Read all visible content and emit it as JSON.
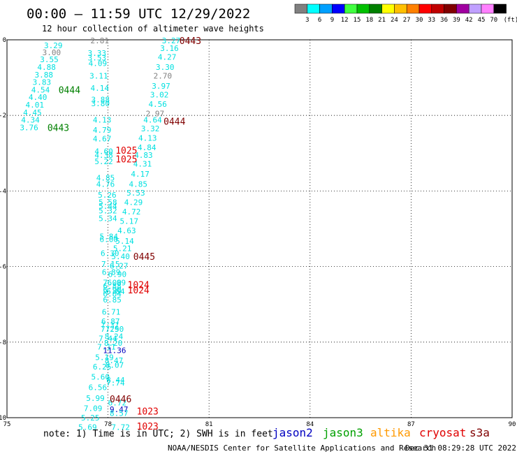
{
  "header": {
    "title": "00:00 – 11:59 UTC 12/29/2022",
    "subtitle": "12 hour collection of altimeter wave heights"
  },
  "legend": {
    "unit": "(ft)",
    "bins": [
      {
        "label": "3",
        "color": "#808080"
      },
      {
        "label": "6",
        "color": "#00ffff"
      },
      {
        "label": "9",
        "color": "#00a0ff"
      },
      {
        "label": "12",
        "color": "#0000ff"
      },
      {
        "label": "15",
        "color": "#40ff40"
      },
      {
        "label": "18",
        "color": "#00c000"
      },
      {
        "label": "21",
        "color": "#008000"
      },
      {
        "label": "24",
        "color": "#ffff00"
      },
      {
        "label": "27",
        "color": "#ffc000"
      },
      {
        "label": "30",
        "color": "#ff8000"
      },
      {
        "label": "33",
        "color": "#ff0000"
      },
      {
        "label": "36",
        "color": "#c00000"
      },
      {
        "label": "39",
        "color": "#800000"
      },
      {
        "label": "42",
        "color": "#a000a0"
      },
      {
        "label": "45",
        "color": "#c0a0ff"
      },
      {
        "label": "70",
        "color": "#ff80ff"
      },
      {
        "label": "",
        "color": "#000000"
      }
    ]
  },
  "footer": {
    "note": "note: 1) Time is in UTC; 2) SWH is in feet",
    "credit": "NOAA/NESDIS Center for Satellite Applications and Research",
    "timestamp": "Dec 31 08:29:28 UTC 2022",
    "satellites": [
      {
        "name": "jason2",
        "color": "#0000c0"
      },
      {
        "name": "jason3",
        "color": "#00a000"
      },
      {
        "name": "altika",
        "color": "#ff9900"
      },
      {
        "name": "cryosat",
        "color": "#e00000"
      },
      {
        "name": "s3a",
        "color": "#800000"
      }
    ]
  },
  "chart_data": {
    "type": "scatter",
    "xlim": [
      75,
      90
    ],
    "ylim": [
      -10,
      0
    ],
    "x_ticks": [
      "75",
      "78",
      "81",
      "84",
      "87",
      "90"
    ],
    "y_ticks": [
      "0",
      "-2",
      "-4",
      "-6",
      "-8",
      "-10"
    ],
    "x_tick_values": [
      75,
      78,
      81,
      84,
      87,
      90
    ],
    "y_tick_values": [
      0,
      -2,
      -4,
      -6,
      -8,
      -10
    ],
    "grid": true,
    "points": [
      {
        "x": 76.1,
        "y": -0.15,
        "label": "3.29",
        "color": "#00e0e0"
      },
      {
        "x": 76.05,
        "y": -0.33,
        "label": "3.00",
        "color": "#808080"
      },
      {
        "x": 75.98,
        "y": -0.52,
        "label": "3.55",
        "color": "#00e0e0"
      },
      {
        "x": 75.9,
        "y": -0.72,
        "label": "4.88",
        "color": "#00e0e0"
      },
      {
        "x": 75.82,
        "y": -0.92,
        "label": "3.88",
        "color": "#00e0e0"
      },
      {
        "x": 75.76,
        "y": -1.12,
        "label": "3.83",
        "color": "#00e0e0"
      },
      {
        "x": 75.72,
        "y": -1.32,
        "label": "4.54",
        "color": "#00e0e0"
      },
      {
        "x": 75.64,
        "y": -1.52,
        "label": "4.40",
        "color": "#00e0e0"
      },
      {
        "x": 75.55,
        "y": -1.72,
        "label": "4.01",
        "color": "#00e0e0"
      },
      {
        "x": 75.48,
        "y": -1.92,
        "label": "4.45",
        "color": "#00e0e0"
      },
      {
        "x": 75.42,
        "y": -2.12,
        "label": "4.34",
        "color": "#00e0e0"
      },
      {
        "x": 75.38,
        "y": -2.32,
        "label": "3.76",
        "color": "#00e0e0"
      },
      {
        "x": 76.53,
        "y": -1.32,
        "label": "0444",
        "color": "#008000",
        "time": true
      },
      {
        "x": 76.2,
        "y": -2.32,
        "label": "0443",
        "color": "#008000",
        "time": true
      },
      {
        "x": 77.48,
        "y": -0.02,
        "label": "2.81",
        "color": "#808080"
      },
      {
        "x": 77.4,
        "y": -0.35,
        "label": "3.33",
        "color": "#00e0e0"
      },
      {
        "x": 77.4,
        "y": -0.47,
        "label": "3.53",
        "color": "#00e0e0"
      },
      {
        "x": 77.42,
        "y": -0.62,
        "label": "4.09",
        "color": "#00e0e0"
      },
      {
        "x": 77.45,
        "y": -0.95,
        "label": "3.11",
        "color": "#00e0e0"
      },
      {
        "x": 77.48,
        "y": -1.28,
        "label": "4.14",
        "color": "#00e0e0"
      },
      {
        "x": 77.5,
        "y": -1.58,
        "label": "3.88",
        "color": "#00e0e0"
      },
      {
        "x": 77.5,
        "y": -1.68,
        "label": "3.80",
        "color": "#00e0e0"
      },
      {
        "x": 77.55,
        "y": -2.12,
        "label": "4.13",
        "color": "#00e0e0"
      },
      {
        "x": 77.55,
        "y": -2.38,
        "label": "4.79",
        "color": "#00e0e0"
      },
      {
        "x": 77.55,
        "y": -2.62,
        "label": "4.67",
        "color": "#00e0e0"
      },
      {
        "x": 77.6,
        "y": -2.95,
        "label": "4.60",
        "color": "#00e0e0"
      },
      {
        "x": 77.6,
        "y": -3.05,
        "label": "4.38",
        "color": "#00e0e0"
      },
      {
        "x": 77.6,
        "y": -3.22,
        "label": "5.22",
        "color": "#00e0e0"
      },
      {
        "x": 77.65,
        "y": -3.65,
        "label": "4.85",
        "color": "#00e0e0"
      },
      {
        "x": 77.65,
        "y": -3.82,
        "label": "4.76",
        "color": "#00e0e0"
      },
      {
        "x": 77.7,
        "y": -4.1,
        "label": "5.26",
        "color": "#00e0e0"
      },
      {
        "x": 77.72,
        "y": -4.3,
        "label": "5.58",
        "color": "#00e0e0"
      },
      {
        "x": 77.72,
        "y": -4.4,
        "label": "5.44",
        "color": "#00e0e0"
      },
      {
        "x": 77.72,
        "y": -4.52,
        "label": "5.32",
        "color": "#00e0e0"
      },
      {
        "x": 77.72,
        "y": -4.72,
        "label": "5.34",
        "color": "#00e0e0"
      },
      {
        "x": 77.75,
        "y": -5.2,
        "label": "5.84",
        "color": "#00e0e0"
      },
      {
        "x": 77.75,
        "y": -5.28,
        "label": "6.00",
        "color": "#00e0e0"
      },
      {
        "x": 77.78,
        "y": -5.65,
        "label": "6.30",
        "color": "#00e0e0"
      },
      {
        "x": 77.8,
        "y": -5.93,
        "label": "7.15",
        "color": "#00e0e0"
      },
      {
        "x": 77.82,
        "y": -6.15,
        "label": "6.89",
        "color": "#00e0e0"
      },
      {
        "x": 77.85,
        "y": -6.42,
        "label": "7.00",
        "color": "#00e0e0"
      },
      {
        "x": 77.85,
        "y": -6.52,
        "label": "6.88",
        "color": "#00e0e0"
      },
      {
        "x": 77.85,
        "y": -6.62,
        "label": "6.90",
        "color": "#00e0e0"
      },
      {
        "x": 77.85,
        "y": -6.72,
        "label": "6.84",
        "color": "#00e0e0"
      },
      {
        "x": 77.85,
        "y": -6.88,
        "label": "6.85",
        "color": "#00e0e0"
      },
      {
        "x": 77.82,
        "y": -7.2,
        "label": "6.71",
        "color": "#00e0e0"
      },
      {
        "x": 77.8,
        "y": -7.45,
        "label": "6.87",
        "color": "#00e0e0"
      },
      {
        "x": 77.78,
        "y": -7.55,
        "label": "7.37",
        "color": "#00e0e0"
      },
      {
        "x": 77.78,
        "y": -7.65,
        "label": "7.29",
        "color": "#00e0e0"
      },
      {
        "x": 77.72,
        "y": -7.9,
        "label": "7.44",
        "color": "#00e0e0"
      },
      {
        "x": 77.68,
        "y": -8.12,
        "label": "7.11",
        "color": "#00e0e0"
      },
      {
        "x": 77.62,
        "y": -8.4,
        "label": "5.19",
        "color": "#00e0e0"
      },
      {
        "x": 77.55,
        "y": -8.65,
        "label": "6.25",
        "color": "#00e0e0"
      },
      {
        "x": 77.5,
        "y": -8.92,
        "label": "5.60",
        "color": "#00e0e0"
      },
      {
        "x": 77.42,
        "y": -9.2,
        "label": "6.56",
        "color": "#00e0e0"
      },
      {
        "x": 77.35,
        "y": -9.48,
        "label": "5.99",
        "color": "#00e0e0"
      },
      {
        "x": 77.28,
        "y": -9.75,
        "label": "7.09",
        "color": "#00e0e0"
      },
      {
        "x": 77.2,
        "y": -10.0,
        "label": "5.25",
        "color": "#00e0e0"
      },
      {
        "x": 77.12,
        "y": -10.25,
        "label": "5.69",
        "color": "#00e0e0"
      },
      {
        "x": 79.6,
        "y": -0.02,
        "label": "3.27",
        "color": "#00e0e0"
      },
      {
        "x": 79.55,
        "y": -0.22,
        "label": "3.16",
        "color": "#00e0e0"
      },
      {
        "x": 79.48,
        "y": -0.45,
        "label": "4.27",
        "color": "#00e0e0"
      },
      {
        "x": 79.42,
        "y": -0.72,
        "label": "3.30",
        "color": "#00e0e0"
      },
      {
        "x": 79.35,
        "y": -0.95,
        "label": "2.70",
        "color": "#808080"
      },
      {
        "x": 79.3,
        "y": -1.22,
        "label": "3.97",
        "color": "#00e0e0"
      },
      {
        "x": 79.25,
        "y": -1.45,
        "label": "3.02",
        "color": "#00e0e0"
      },
      {
        "x": 79.2,
        "y": -1.7,
        "label": "4.56",
        "color": "#00e0e0"
      },
      {
        "x": 79.12,
        "y": -1.95,
        "label": "2.97",
        "color": "#808080"
      },
      {
        "x": 79.05,
        "y": -2.12,
        "label": "4.64",
        "color": "#00e0e0"
      },
      {
        "x": 78.98,
        "y": -2.35,
        "label": "3.32",
        "color": "#00e0e0"
      },
      {
        "x": 78.9,
        "y": -2.6,
        "label": "4.13",
        "color": "#00e0e0"
      },
      {
        "x": 78.88,
        "y": -2.85,
        "label": "4.84",
        "color": "#00e0e0"
      },
      {
        "x": 78.78,
        "y": -3.05,
        "label": "4.83",
        "color": "#00e0e0"
      },
      {
        "x": 78.75,
        "y": -3.28,
        "label": "4.31",
        "color": "#00e0e0"
      },
      {
        "x": 78.68,
        "y": -3.55,
        "label": "4.17",
        "color": "#00e0e0"
      },
      {
        "x": 78.62,
        "y": -3.82,
        "label": "4.85",
        "color": "#00e0e0"
      },
      {
        "x": 78.55,
        "y": -4.05,
        "label": "5.53",
        "color": "#00e0e0"
      },
      {
        "x": 78.48,
        "y": -4.3,
        "label": "4.29",
        "color": "#00e0e0"
      },
      {
        "x": 78.42,
        "y": -4.55,
        "label": "4.72",
        "color": "#00e0e0"
      },
      {
        "x": 78.35,
        "y": -4.8,
        "label": "5.17",
        "color": "#00e0e0"
      },
      {
        "x": 78.28,
        "y": -5.05,
        "label": "4.63",
        "color": "#00e0e0"
      },
      {
        "x": 78.22,
        "y": -5.32,
        "label": "5.14",
        "color": "#00e0e0"
      },
      {
        "x": 78.15,
        "y": -5.52,
        "label": "5.21",
        "color": "#00e0e0"
      },
      {
        "x": 78.1,
        "y": -5.73,
        "label": "5.40",
        "color": "#00e0e0"
      },
      {
        "x": 78.05,
        "y": -5.98,
        "label": "6.27",
        "color": "#00e0e0"
      },
      {
        "x": 78.0,
        "y": -6.2,
        "label": "6.90",
        "color": "#00e0e0"
      },
      {
        "x": 77.98,
        "y": -6.42,
        "label": "6.89",
        "color": "#00e0e0"
      },
      {
        "x": 77.95,
        "y": -6.65,
        "label": "6.84",
        "color": "#00e0e0"
      },
      {
        "x": 77.92,
        "y": -7.65,
        "label": "7.50",
        "color": "#00e0e0"
      },
      {
        "x": 77.9,
        "y": -7.85,
        "label": "8.24",
        "color": "#00e0e0"
      },
      {
        "x": 77.88,
        "y": -8.02,
        "label": "8.20",
        "color": "#00e0e0"
      },
      {
        "x": 77.85,
        "y": -8.22,
        "label": "11.36",
        "color": "#0000c0"
      },
      {
        "x": 77.9,
        "y": -8.48,
        "label": "8.47",
        "color": "#00e0e0"
      },
      {
        "x": 77.92,
        "y": -8.6,
        "label": "8.07",
        "color": "#00e0e0"
      },
      {
        "x": 77.95,
        "y": -9.0,
        "label": "8.44",
        "color": "#00e0e0"
      },
      {
        "x": 77.95,
        "y": -9.08,
        "label": "7.74",
        "color": "#00e0e0"
      },
      {
        "x": 78.0,
        "y": -9.6,
        "label": "6.72",
        "color": "#00e0e0"
      },
      {
        "x": 78.05,
        "y": -9.78,
        "label": "9.47",
        "color": "#0000c0"
      },
      {
        "x": 78.05,
        "y": -9.88,
        "label": "8.57",
        "color": "#00e0e0"
      },
      {
        "x": 78.1,
        "y": -10.25,
        "label": "7.72",
        "color": "#00e0e0"
      },
      {
        "x": 80.12,
        "y": -0.02,
        "label": "0443",
        "color": "#800000",
        "time": true
      },
      {
        "x": 79.65,
        "y": -2.15,
        "label": "0444",
        "color": "#800000",
        "time": true
      },
      {
        "x": 78.75,
        "y": -5.73,
        "label": "0445",
        "color": "#800000",
        "time": true
      },
      {
        "x": 78.05,
        "y": -9.5,
        "label": "0446",
        "color": "#800000",
        "time": true
      },
      {
        "x": 78.22,
        "y": -2.92,
        "label": "1025",
        "color": "#e00000",
        "time": true
      },
      {
        "x": 78.22,
        "y": -3.15,
        "label": "1025",
        "color": "#e00000",
        "time": true
      },
      {
        "x": 78.58,
        "y": -6.48,
        "label": "1024",
        "color": "#e00000",
        "time": true
      },
      {
        "x": 78.58,
        "y": -6.62,
        "label": "1024",
        "color": "#e00000",
        "time": true
      },
      {
        "x": 78.85,
        "y": -9.82,
        "label": "1023",
        "color": "#e00000",
        "time": true
      },
      {
        "x": 78.85,
        "y": -10.22,
        "label": "1023",
        "color": "#e00000",
        "time": true
      }
    ]
  }
}
